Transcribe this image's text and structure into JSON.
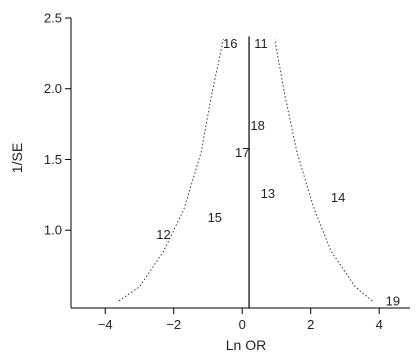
{
  "chart_data": {
    "type": "scatter",
    "title": "",
    "xlabel": "Ln OR",
    "ylabel": "1/SE",
    "xlim": [
      -5,
      4.9
    ],
    "ylim": [
      0.45,
      2.5
    ],
    "x_ticks": [
      -4,
      -2,
      0,
      2,
      4
    ],
    "y_ticks": [
      1.0,
      1.5,
      2.0,
      2.5
    ],
    "x_tick_labels": [
      "−4",
      "−2",
      "0",
      "2",
      "4"
    ],
    "y_tick_labels": [
      "1.0",
      "1.5",
      "2.0",
      "2.5"
    ],
    "center_line_x": 0.2,
    "funnel_bounds": {
      "left": [
        [
          -3.6,
          0.5
        ],
        [
          -3.0,
          0.6
        ],
        [
          -2.3,
          0.85
        ],
        [
          -1.7,
          1.15
        ],
        [
          -1.2,
          1.55
        ],
        [
          -0.9,
          1.95
        ],
        [
          -0.55,
          2.35
        ]
      ],
      "right": [
        [
          3.8,
          0.5
        ],
        [
          3.3,
          0.6
        ],
        [
          2.6,
          0.85
        ],
        [
          2.1,
          1.15
        ],
        [
          1.6,
          1.55
        ],
        [
          1.25,
          1.95
        ],
        [
          0.95,
          2.35
        ]
      ]
    },
    "points": [
      {
        "label": "11",
        "x": 0.55,
        "y": 2.32
      },
      {
        "label": "12",
        "x": -2.3,
        "y": 0.97
      },
      {
        "label": "13",
        "x": 0.75,
        "y": 1.26
      },
      {
        "label": "14",
        "x": 2.8,
        "y": 1.23
      },
      {
        "label": "15",
        "x": -0.8,
        "y": 1.09
      },
      {
        "label": "16",
        "x": -0.35,
        "y": 2.32
      },
      {
        "label": "17",
        "x": 0.0,
        "y": 1.55
      },
      {
        "label": "18",
        "x": 0.45,
        "y": 1.74
      },
      {
        "label": "19",
        "x": 4.4,
        "y": 0.5
      }
    ]
  }
}
